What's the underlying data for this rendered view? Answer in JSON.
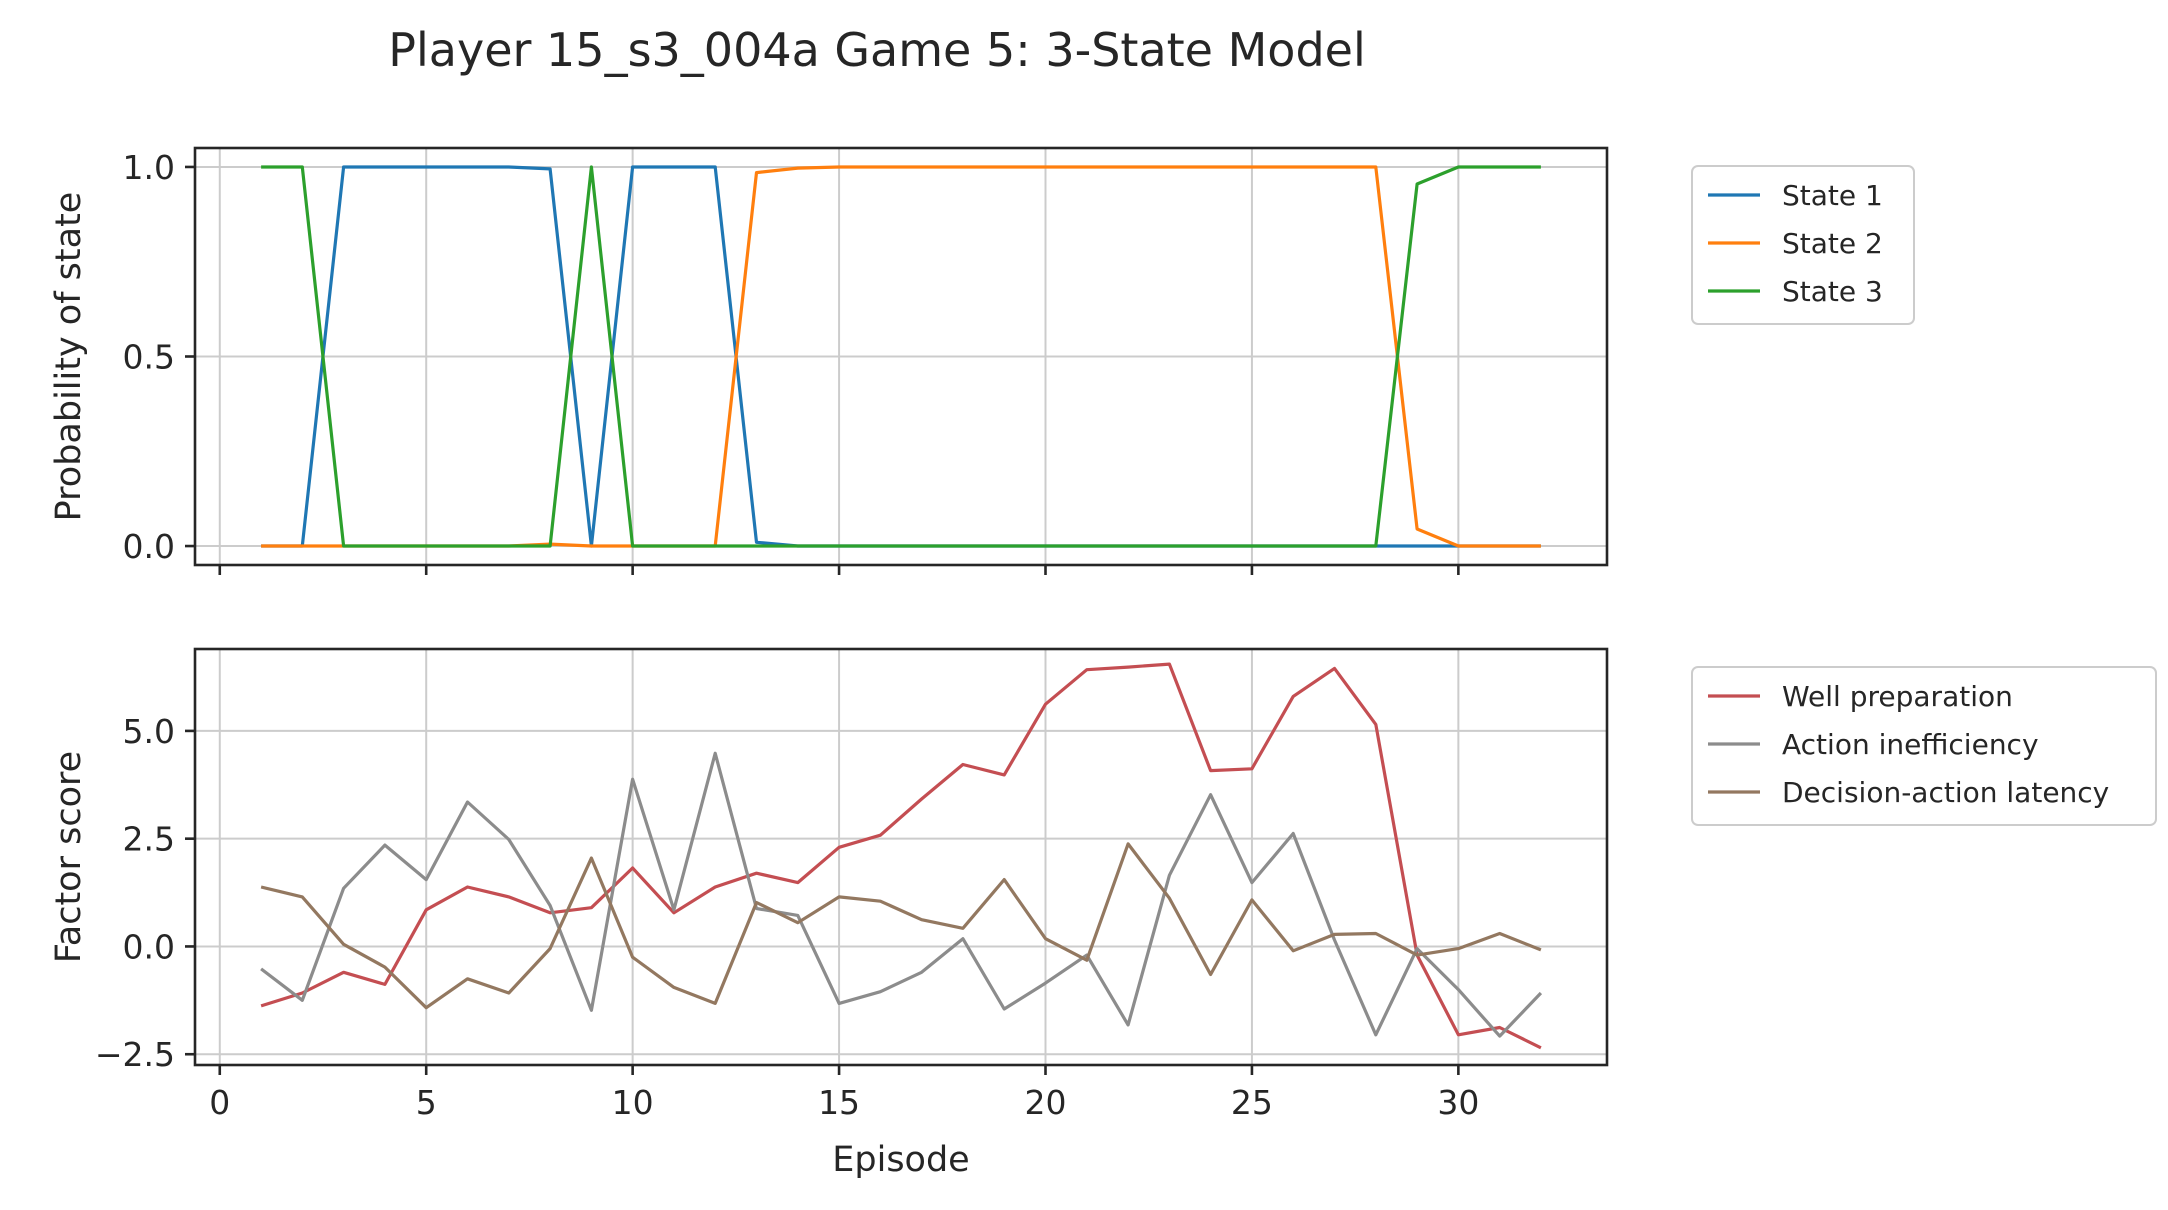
{
  "chart_data": [
    {
      "type": "line",
      "title": "Player 15_s3_004a Game 5: 3-State Model",
      "xlabel": "",
      "ylabel": "Probability of state",
      "xlim": [
        -0.6,
        33.6
      ],
      "ylim": [
        -0.05,
        1.05
      ],
      "xticks": [
        0,
        5,
        10,
        15,
        20,
        25,
        30
      ],
      "yticks": [
        0.0,
        0.5,
        1.0
      ],
      "ytick_labels": [
        "0.0",
        "0.5",
        "1.0"
      ],
      "grid": true,
      "legend_position": "outside-right-top",
      "x": [
        1,
        2,
        3,
        4,
        5,
        6,
        7,
        8,
        9,
        10,
        11,
        12,
        13,
        14,
        15,
        16,
        17,
        18,
        19,
        20,
        21,
        22,
        23,
        24,
        25,
        26,
        27,
        28,
        29,
        30,
        31,
        32
      ],
      "series": [
        {
          "name": "State 1",
          "color": "#1f77b4",
          "values": [
            0,
            0,
            1,
            1,
            1,
            1,
            1,
            0.995,
            0,
            1,
            1,
            1,
            0.01,
            0,
            0,
            0,
            0,
            0,
            0,
            0,
            0,
            0,
            0,
            0,
            0,
            0,
            0,
            0,
            0,
            0,
            0,
            0
          ]
        },
        {
          "name": "State 2",
          "color": "#ff7f0e",
          "values": [
            0,
            0,
            0,
            0,
            0,
            0,
            0,
            0.005,
            0,
            0,
            0,
            0,
            0.985,
            0.997,
            1,
            1,
            1,
            1,
            1,
            1,
            1,
            1,
            1,
            1,
            1,
            1,
            1,
            1,
            0.045,
            0,
            0,
            0
          ]
        },
        {
          "name": "State 3",
          "color": "#2ca02c",
          "values": [
            1,
            1,
            0,
            0,
            0,
            0,
            0,
            0,
            1,
            0,
            0,
            0,
            0,
            0,
            0,
            0,
            0,
            0,
            0,
            0,
            0,
            0,
            0,
            0,
            0,
            0,
            0,
            0,
            0.955,
            1,
            1,
            1
          ]
        }
      ]
    },
    {
      "type": "line",
      "title": "",
      "xlabel": "Episode",
      "ylabel": "Factor score",
      "xlim": [
        -0.6,
        33.6
      ],
      "ylim": [
        -2.75,
        6.9
      ],
      "xticks": [
        0,
        5,
        10,
        15,
        20,
        25,
        30
      ],
      "xtick_labels": [
        "0",
        "5",
        "10",
        "15",
        "20",
        "25",
        "30"
      ],
      "yticks": [
        -2.5,
        0.0,
        2.5,
        5.0
      ],
      "ytick_labels": [
        "−2.5",
        "0.0",
        "2.5",
        "5.0"
      ],
      "grid": true,
      "legend_position": "outside-right-top",
      "x": [
        1,
        2,
        3,
        4,
        5,
        6,
        7,
        8,
        9,
        10,
        11,
        12,
        13,
        14,
        15,
        16,
        17,
        18,
        19,
        20,
        21,
        22,
        23,
        24,
        25,
        26,
        27,
        28,
        29,
        30,
        31,
        32
      ],
      "series": [
        {
          "name": "Well preparation",
          "color": "#c44e52",
          "values": [
            -1.38,
            -1.08,
            -0.6,
            -0.88,
            0.85,
            1.38,
            1.15,
            0.78,
            0.9,
            1.82,
            0.78,
            1.38,
            1.7,
            1.48,
            2.3,
            2.58,
            3.42,
            4.22,
            3.98,
            5.62,
            6.42,
            6.48,
            6.55,
            4.08,
            4.12,
            5.8,
            6.45,
            5.15,
            -0.2,
            -2.05,
            -1.88,
            -2.35
          ]
        },
        {
          "name": "Action inefficiency",
          "color": "#8c8c8c",
          "values": [
            -0.52,
            -1.25,
            1.35,
            2.35,
            1.55,
            3.35,
            2.48,
            0.95,
            -1.48,
            3.88,
            0.85,
            4.48,
            0.88,
            0.72,
            -1.32,
            -1.05,
            -0.6,
            0.18,
            -1.45,
            -0.85,
            -0.2,
            -1.82,
            1.65,
            3.52,
            1.48,
            2.62,
            0.15,
            -2.05,
            -0.05,
            -1.0,
            -2.08,
            -1.08
          ]
        },
        {
          "name": "Decision-action latency",
          "color": "#937860",
          "values": [
            1.38,
            1.15,
            0.05,
            -0.48,
            -1.42,
            -0.75,
            -1.08,
            -0.05,
            2.05,
            -0.25,
            -0.95,
            -1.32,
            1.02,
            0.55,
            1.15,
            1.05,
            0.62,
            0.42,
            1.55,
            0.18,
            -0.32,
            2.38,
            1.12,
            -0.65,
            1.08,
            -0.1,
            0.28,
            0.3,
            -0.2,
            -0.05,
            0.3,
            -0.08
          ]
        }
      ]
    }
  ]
}
